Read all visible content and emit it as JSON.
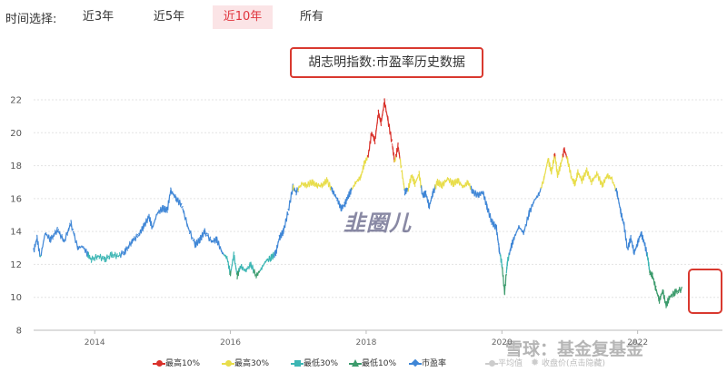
{
  "toolbar": {
    "label": "时间选择:",
    "buttons": [
      {
        "label": "近3年",
        "active": false
      },
      {
        "label": "近5年",
        "active": false
      },
      {
        "label": "近10年",
        "active": true
      },
      {
        "label": "所有",
        "active": false
      }
    ]
  },
  "chart_title": "胡志明指数:市盈率历史数据",
  "watermark": "韭圈儿",
  "watermark_corner": "雪球：基金复基金",
  "legend": [
    {
      "label": "最高10%",
      "color": "#d9312a",
      "marker": "dot",
      "off": false
    },
    {
      "label": "最高30%",
      "color": "#e8dd4a",
      "marker": "dot",
      "off": false
    },
    {
      "label": "最低30%",
      "color": "#3cb6b4",
      "marker": "square",
      "off": false
    },
    {
      "label": "最低10%",
      "color": "#3c9b6c",
      "marker": "triangle",
      "off": false
    },
    {
      "label": "市盈率",
      "color": "#3f86d6",
      "marker": "diamond",
      "off": false
    },
    {
      "label": "平均值",
      "color": "#cccccc",
      "marker": "dot",
      "off": true
    },
    {
      "label": "收盘价(点击隐藏)",
      "color": "#cccccc",
      "marker": "sun",
      "off": true
    }
  ],
  "chart_data": {
    "type": "line",
    "title": "胡志明指数:市盈率历史数据",
    "xlabel": "",
    "ylabel": "",
    "xlim": [
      2013.1,
      2023.25
    ],
    "ylim": [
      8,
      22
    ],
    "x_ticks": [
      "2014",
      "2016",
      "2018",
      "2020",
      "2022"
    ],
    "x_tick_values": [
      2014,
      2016,
      2018,
      2020,
      2022
    ],
    "y_ticks": [
      8,
      10,
      12,
      14,
      16,
      18,
      20,
      22
    ],
    "grid": true,
    "legend_position": "bottom",
    "series_colors": {
      "top10": "#d9312a",
      "top30": "#e8dd4a",
      "mid": "#3f86d6",
      "bottom30": "#3cb6b4",
      "bottom10": "#3c9b6c"
    },
    "bands": {
      "top10_min": 18.5,
      "top30_min": 16.6,
      "bottom30_max": 12.6,
      "bottom10_max": 11.6
    },
    "series": [
      {
        "name": "市盈率",
        "points": [
          [
            2013.1,
            12.8
          ],
          [
            2013.15,
            13.6
          ],
          [
            2013.2,
            12.4
          ],
          [
            2013.27,
            13.9
          ],
          [
            2013.35,
            13.5
          ],
          [
            2013.45,
            14.1
          ],
          [
            2013.55,
            13.4
          ],
          [
            2013.65,
            14.5
          ],
          [
            2013.75,
            13.0
          ],
          [
            2013.82,
            13.1
          ],
          [
            2013.9,
            12.6
          ],
          [
            2013.95,
            12.3
          ],
          [
            2014.05,
            12.5
          ],
          [
            2014.15,
            12.3
          ],
          [
            2014.25,
            12.6
          ],
          [
            2014.35,
            12.5
          ],
          [
            2014.45,
            12.8
          ],
          [
            2014.55,
            13.4
          ],
          [
            2014.65,
            13.8
          ],
          [
            2014.72,
            14.3
          ],
          [
            2014.8,
            14.9
          ],
          [
            2014.85,
            14.2
          ],
          [
            2014.92,
            15.1
          ],
          [
            2015.0,
            15.4
          ],
          [
            2015.07,
            15.3
          ],
          [
            2015.12,
            16.5
          ],
          [
            2015.2,
            16.0
          ],
          [
            2015.28,
            15.6
          ],
          [
            2015.38,
            14.2
          ],
          [
            2015.48,
            13.2
          ],
          [
            2015.55,
            13.5
          ],
          [
            2015.62,
            14.0
          ],
          [
            2015.72,
            13.4
          ],
          [
            2015.8,
            13.5
          ],
          [
            2015.88,
            12.7
          ],
          [
            2015.95,
            12.4
          ],
          [
            2016.0,
            11.4
          ],
          [
            2016.05,
            12.6
          ],
          [
            2016.1,
            11.3
          ],
          [
            2016.15,
            11.9
          ],
          [
            2016.22,
            11.6
          ],
          [
            2016.3,
            12.0
          ],
          [
            2016.38,
            11.3
          ],
          [
            2016.45,
            11.7
          ],
          [
            2016.52,
            12.2
          ],
          [
            2016.6,
            12.4
          ],
          [
            2016.67,
            12.7
          ],
          [
            2016.72,
            13.6
          ],
          [
            2016.78,
            14.0
          ],
          [
            2016.85,
            15.2
          ],
          [
            2016.92,
            16.7
          ],
          [
            2016.97,
            16.4
          ],
          [
            2017.05,
            16.9
          ],
          [
            2017.12,
            16.8
          ],
          [
            2017.2,
            17.0
          ],
          [
            2017.27,
            16.8
          ],
          [
            2017.35,
            16.8
          ],
          [
            2017.42,
            17.1
          ],
          [
            2017.5,
            16.5
          ],
          [
            2017.57,
            16.0
          ],
          [
            2017.63,
            15.4
          ],
          [
            2017.68,
            15.6
          ],
          [
            2017.73,
            16.1
          ],
          [
            2017.78,
            16.5
          ],
          [
            2017.85,
            17.0
          ],
          [
            2017.92,
            17.3
          ],
          [
            2017.97,
            18.1
          ],
          [
            2018.03,
            18.6
          ],
          [
            2018.08,
            20.0
          ],
          [
            2018.13,
            19.5
          ],
          [
            2018.18,
            21.2
          ],
          [
            2018.22,
            20.6
          ],
          [
            2018.27,
            21.9
          ],
          [
            2018.32,
            20.8
          ],
          [
            2018.38,
            19.4
          ],
          [
            2018.42,
            18.2
          ],
          [
            2018.47,
            19.2
          ],
          [
            2018.52,
            17.8
          ],
          [
            2018.57,
            16.4
          ],
          [
            2018.62,
            16.6
          ],
          [
            2018.67,
            17.4
          ],
          [
            2018.72,
            16.9
          ],
          [
            2018.78,
            17.5
          ],
          [
            2018.83,
            16.2
          ],
          [
            2018.88,
            16.3
          ],
          [
            2018.93,
            15.5
          ],
          [
            2018.98,
            16.3
          ],
          [
            2019.05,
            17.0
          ],
          [
            2019.12,
            16.8
          ],
          [
            2019.2,
            17.2
          ],
          [
            2019.28,
            16.9
          ],
          [
            2019.35,
            17.1
          ],
          [
            2019.43,
            16.7
          ],
          [
            2019.5,
            17.0
          ],
          [
            2019.57,
            16.4
          ],
          [
            2019.65,
            16.2
          ],
          [
            2019.72,
            16.4
          ],
          [
            2019.78,
            15.5
          ],
          [
            2019.85,
            14.6
          ],
          [
            2019.92,
            14.2
          ],
          [
            2019.96,
            12.9
          ],
          [
            2020.0,
            12.0
          ],
          [
            2020.04,
            10.3
          ],
          [
            2020.08,
            12.1
          ],
          [
            2020.13,
            13.0
          ],
          [
            2020.18,
            13.6
          ],
          [
            2020.25,
            14.3
          ],
          [
            2020.32,
            13.9
          ],
          [
            2020.4,
            15.1
          ],
          [
            2020.48,
            15.9
          ],
          [
            2020.55,
            16.3
          ],
          [
            2020.62,
            17.2
          ],
          [
            2020.68,
            18.4
          ],
          [
            2020.73,
            17.6
          ],
          [
            2020.78,
            18.7
          ],
          [
            2020.82,
            17.4
          ],
          [
            2020.87,
            18.1
          ],
          [
            2020.92,
            19.0
          ],
          [
            2020.97,
            18.3
          ],
          [
            2021.03,
            17.2
          ],
          [
            2021.08,
            16.9
          ],
          [
            2021.12,
            17.6
          ],
          [
            2021.18,
            17.1
          ],
          [
            2021.25,
            17.7
          ],
          [
            2021.32,
            17.0
          ],
          [
            2021.4,
            17.5
          ],
          [
            2021.48,
            16.8
          ],
          [
            2021.55,
            17.4
          ],
          [
            2021.62,
            17.2
          ],
          [
            2021.7,
            16.3
          ],
          [
            2021.75,
            15.2
          ],
          [
            2021.8,
            14.4
          ],
          [
            2021.85,
            12.9
          ],
          [
            2021.9,
            13.6
          ],
          [
            2021.95,
            12.7
          ],
          [
            2022.0,
            13.3
          ],
          [
            2022.05,
            13.9
          ],
          [
            2022.1,
            13.3
          ],
          [
            2022.15,
            12.4
          ],
          [
            2022.18,
            11.5
          ],
          [
            2022.22,
            11.3
          ],
          [
            2022.27,
            10.5
          ],
          [
            2022.32,
            9.8
          ],
          [
            2022.37,
            10.4
          ],
          [
            2022.42,
            9.5
          ],
          [
            2022.47,
            10.0
          ],
          [
            2022.55,
            10.3
          ],
          [
            2022.65,
            10.5
          ]
        ]
      }
    ]
  }
}
